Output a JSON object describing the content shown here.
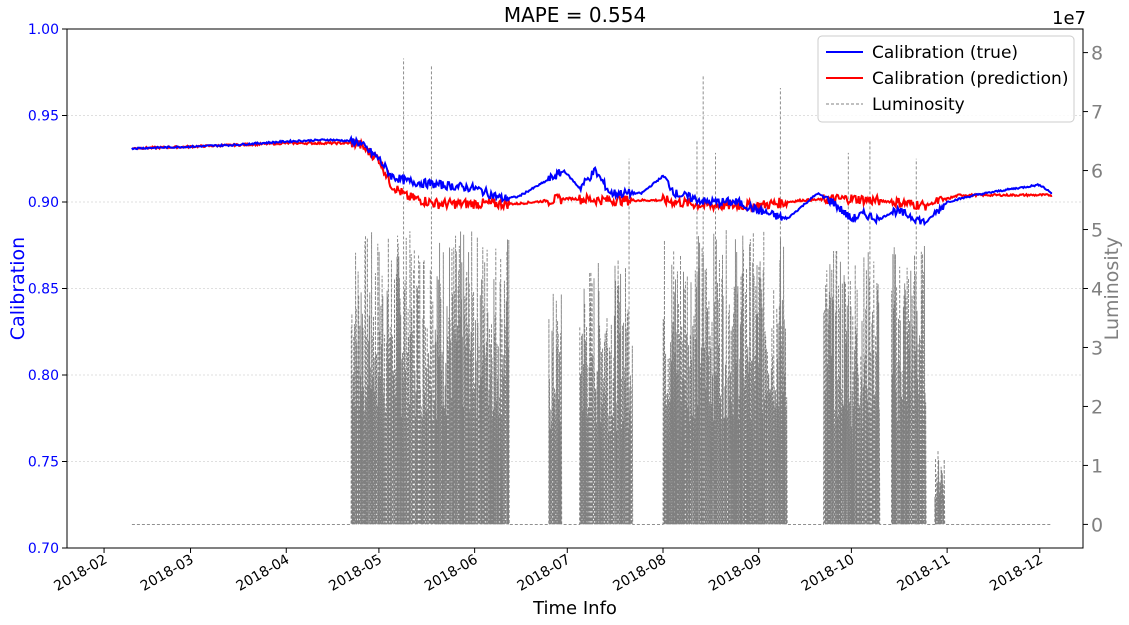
{
  "chart_data": {
    "type": "line",
    "title": "MAPE = 0.554",
    "xlabel": "Time Info",
    "ylabel": "Calibration",
    "ylabel_right": "Luminosity",
    "right_axis_offset_label": "1e7",
    "x_ticks": [
      "2018-02",
      "2018-03",
      "2018-04",
      "2018-05",
      "2018-06",
      "2018-07",
      "2018-08",
      "2018-09",
      "2018-10",
      "2018-11",
      "2018-12"
    ],
    "xlim": [
      "2018-01-20",
      "2018-12-15"
    ],
    "ylim": [
      0.7,
      1.0
    ],
    "y_ticks": [
      "0.70",
      "0.75",
      "0.80",
      "0.85",
      "0.90",
      "0.95",
      "1.00"
    ],
    "ylim_right": [
      -0.4,
      8.4
    ],
    "y_ticks_right": [
      "0",
      "1",
      "2",
      "3",
      "4",
      "5",
      "6",
      "7",
      "8"
    ],
    "grid": "horizontal dotted",
    "legend_position": "top-right",
    "colors": {
      "true": "#0000ff",
      "prediction": "#ff0000",
      "luminosity": "#808080"
    },
    "series": [
      {
        "name": "Calibration (true)",
        "axis": "left",
        "style": "solid",
        "x": [
          "2018-02-10",
          "2018-03-01",
          "2018-03-15",
          "2018-04-01",
          "2018-04-15",
          "2018-04-24",
          "2018-05-01",
          "2018-05-05",
          "2018-05-10",
          "2018-05-20",
          "2018-06-01",
          "2018-06-10",
          "2018-06-15",
          "2018-06-25",
          "2018-06-30",
          "2018-07-05",
          "2018-07-10",
          "2018-07-15",
          "2018-07-25",
          "2018-08-01",
          "2018-08-05",
          "2018-08-15",
          "2018-08-25",
          "2018-09-01",
          "2018-09-10",
          "2018-09-20",
          "2018-09-25",
          "2018-10-01",
          "2018-10-05",
          "2018-10-10",
          "2018-10-15",
          "2018-10-20",
          "2018-10-25",
          "2018-11-01",
          "2018-11-10",
          "2018-11-20",
          "2018-12-01",
          "2018-12-05"
        ],
        "y": [
          0.931,
          0.932,
          0.933,
          0.935,
          0.936,
          0.935,
          0.925,
          0.915,
          0.912,
          0.91,
          0.908,
          0.902,
          0.903,
          0.913,
          0.918,
          0.908,
          0.918,
          0.905,
          0.905,
          0.915,
          0.905,
          0.9,
          0.9,
          0.895,
          0.89,
          0.905,
          0.9,
          0.89,
          0.893,
          0.89,
          0.895,
          0.892,
          0.888,
          0.9,
          0.904,
          0.907,
          0.91,
          0.905
        ]
      },
      {
        "name": "Calibration (prediction)",
        "axis": "left",
        "style": "solid",
        "x": [
          "2018-02-10",
          "2018-03-01",
          "2018-04-01",
          "2018-04-24",
          "2018-05-01",
          "2018-05-05",
          "2018-05-10",
          "2018-05-20",
          "2018-06-01",
          "2018-06-15",
          "2018-07-01",
          "2018-07-15",
          "2018-08-01",
          "2018-08-15",
          "2018-09-01",
          "2018-09-15",
          "2018-10-01",
          "2018-10-15",
          "2018-10-25",
          "2018-11-05",
          "2018-12-05"
        ],
        "y": [
          0.931,
          0.932,
          0.934,
          0.934,
          0.925,
          0.91,
          0.903,
          0.899,
          0.899,
          0.899,
          0.902,
          0.901,
          0.901,
          0.898,
          0.898,
          0.901,
          0.902,
          0.9,
          0.898,
          0.904,
          0.904
        ]
      },
      {
        "name": "Luminosity",
        "axis": "right",
        "style": "dashed",
        "baseline": 0.0,
        "active_periods": [
          {
            "start": "2018-04-22",
            "end": "2018-06-12",
            "max": 5.0,
            "spikes": [
              [
                "2018-05-09",
                7.9
              ],
              [
                "2018-05-18",
                7.8
              ]
            ]
          },
          {
            "start": "2018-06-25",
            "end": "2018-06-29",
            "max": 4.0,
            "spikes": []
          },
          {
            "start": "2018-07-05",
            "end": "2018-07-22",
            "max": 4.5,
            "spikes": [
              [
                "2018-07-21",
                6.2
              ]
            ]
          },
          {
            "start": "2018-08-01",
            "end": "2018-09-10",
            "max": 5.0,
            "spikes": [
              [
                "2018-08-12",
                6.5
              ],
              [
                "2018-08-14",
                7.6
              ],
              [
                "2018-08-18",
                6.3
              ],
              [
                "2018-09-08",
                7.4
              ]
            ]
          },
          {
            "start": "2018-09-22",
            "end": "2018-10-10",
            "max": 4.7,
            "spikes": [
              [
                "2018-09-30",
                6.3
              ],
              [
                "2018-10-07",
                6.5
              ]
            ]
          },
          {
            "start": "2018-10-14",
            "end": "2018-10-25",
            "max": 4.8,
            "spikes": [
              [
                "2018-10-22",
                6.2
              ]
            ]
          },
          {
            "start": "2018-10-28",
            "end": "2018-10-31",
            "max": 1.3,
            "spikes": []
          }
        ]
      }
    ]
  }
}
